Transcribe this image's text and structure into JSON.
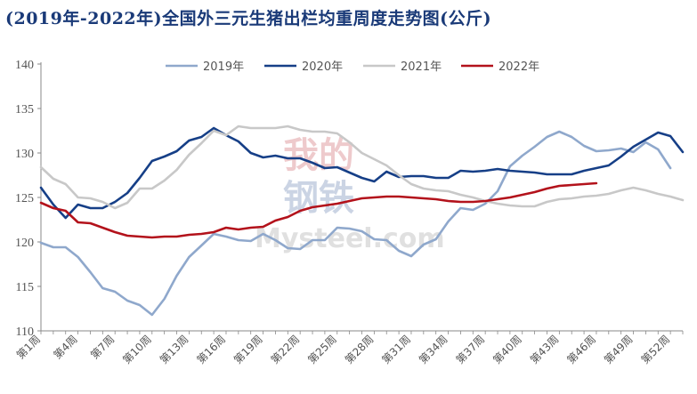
{
  "title": "(2019年-2022年)全国外三元生猪出栏均重周度走势图(公斤)",
  "watermark": {
    "cn_top": "我的",
    "cn_bottom": "钢铁",
    "en": "Mysteel.com"
  },
  "colors": {
    "2019年": "#8fa8cc",
    "2020年": "#163f87",
    "2021年": "#c8c8c8",
    "2022年": "#b3121b",
    "axis": "#888888"
  },
  "chart_data": {
    "type": "line",
    "title": "(2019年-2022年)全国外三元生猪出栏均重周度走势图(公斤)",
    "xlabel": "",
    "ylabel": "",
    "ylim": [
      110,
      140
    ],
    "yticks": [
      110,
      115,
      120,
      125,
      130,
      135,
      140
    ],
    "x": [
      1,
      2,
      3,
      4,
      5,
      6,
      7,
      8,
      9,
      10,
      11,
      12,
      13,
      14,
      15,
      16,
      17,
      18,
      19,
      20,
      21,
      22,
      23,
      24,
      25,
      26,
      27,
      28,
      29,
      30,
      31,
      32,
      33,
      34,
      35,
      36,
      37,
      38,
      39,
      40,
      41,
      42,
      43,
      44,
      45,
      46,
      47,
      48,
      49,
      50,
      51,
      52,
      53
    ],
    "xtick_labels": [
      "第1周",
      "第4周",
      "第7周",
      "第10周",
      "第13周",
      "第16周",
      "第19周",
      "第22周",
      "第25周",
      "第28周",
      "第31周",
      "第34周",
      "第37周",
      "第40周",
      "第43周",
      "第46周",
      "第49周",
      "第52周"
    ],
    "xtick_weeks": [
      1,
      4,
      7,
      10,
      13,
      16,
      19,
      22,
      25,
      28,
      31,
      34,
      37,
      40,
      43,
      46,
      49,
      52
    ],
    "legend_position": "top",
    "grid": false,
    "series": [
      {
        "name": "2019年",
        "color": "#8fa8cc",
        "values": [
          119.9,
          119.4,
          119.4,
          118.3,
          116.6,
          114.8,
          114.4,
          113.4,
          112.9,
          111.8,
          113.6,
          116.2,
          118.3,
          119.6,
          120.9,
          120.6,
          120.2,
          120.1,
          120.9,
          120.2,
          119.3,
          119.2,
          120.2,
          120.2,
          121.6,
          121.5,
          121.2,
          120.3,
          120.2,
          119.0,
          118.4,
          119.7,
          120.3,
          122.3,
          123.8,
          123.6,
          124.3,
          125.7,
          128.5,
          129.7,
          130.7,
          131.8,
          132.4,
          131.8,
          130.8,
          130.2,
          130.3,
          130.5,
          130.1,
          131.2,
          130.4,
          128.3,
          null
        ]
      },
      {
        "name": "2020年",
        "color": "#163f87",
        "values": [
          126.1,
          124.2,
          122.7,
          124.2,
          123.8,
          123.8,
          124.5,
          125.5,
          127.2,
          129.1,
          129.6,
          130.2,
          131.4,
          131.8,
          132.8,
          132.0,
          131.3,
          130.0,
          129.5,
          129.7,
          129.4,
          129.4,
          128.9,
          128.3,
          128.4,
          127.8,
          127.2,
          126.8,
          127.9,
          127.3,
          127.4,
          127.4,
          127.2,
          127.2,
          128.0,
          127.9,
          128.0,
          128.2,
          128.0,
          127.9,
          127.8,
          127.6,
          127.6,
          127.6,
          128.0,
          128.3,
          128.6,
          129.6,
          130.7,
          131.5,
          132.3,
          131.9,
          130.1
        ]
      },
      {
        "name": "2021年",
        "color": "#c8c8c8",
        "values": [
          128.4,
          127.1,
          126.5,
          125.0,
          124.9,
          124.5,
          123.8,
          124.4,
          126.0,
          126.0,
          126.9,
          128.1,
          129.8,
          131.1,
          132.5,
          132.0,
          133.0,
          132.8,
          132.8,
          132.8,
          133.0,
          132.6,
          132.4,
          132.4,
          132.2,
          131.2,
          130.0,
          129.3,
          128.6,
          127.5,
          126.5,
          126.0,
          125.8,
          125.7,
          125.3,
          125.0,
          124.6,
          124.3,
          124.1,
          124.0,
          124.0,
          124.5,
          124.8,
          124.9,
          125.1,
          125.2,
          125.4,
          125.8,
          126.1,
          125.8,
          125.4,
          125.1,
          124.7
        ]
      },
      {
        "name": "2022年",
        "color": "#b3121b",
        "values": [
          124.4,
          123.8,
          123.5,
          122.2,
          122.1,
          121.6,
          121.1,
          120.7,
          120.6,
          120.5,
          120.6,
          120.6,
          120.8,
          120.9,
          121.1,
          121.6,
          121.4,
          121.6,
          121.7,
          122.4,
          122.8,
          123.5,
          123.9,
          124.1,
          124.3,
          124.6,
          124.9,
          125.0,
          125.1,
          125.1,
          125.0,
          124.9,
          124.8,
          124.6,
          124.5,
          124.5,
          124.6,
          124.8,
          125.0,
          125.3,
          125.6,
          126.0,
          126.3,
          126.4,
          126.5,
          126.6,
          null,
          null,
          null,
          null,
          null,
          null,
          null
        ]
      }
    ]
  }
}
